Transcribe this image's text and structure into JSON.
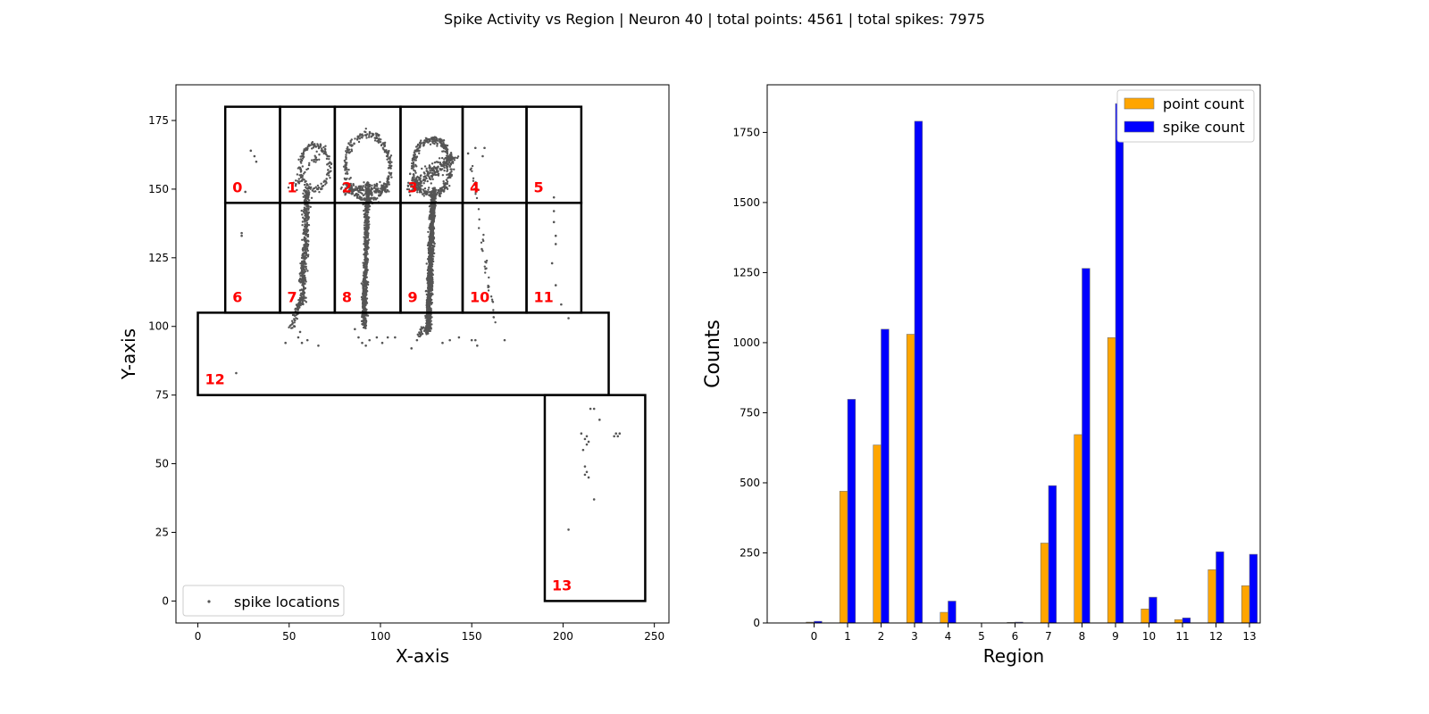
{
  "figure": {
    "suptitle": "Spike Activity vs Region | Neuron 40 | total points: 4561 | total spikes: 7975"
  },
  "chart_data": [
    {
      "type": "scatter",
      "title": "",
      "xlabel": "X-axis",
      "ylabel": "Y-axis",
      "xlim": [
        -12,
        258
      ],
      "ylim": [
        -8,
        188
      ],
      "xticks": [
        0,
        50,
        100,
        150,
        200,
        250
      ],
      "yticks": [
        0,
        25,
        50,
        75,
        100,
        125,
        150,
        175
      ],
      "legend": {
        "label": "spike locations",
        "position": "lower-left"
      },
      "point_color": "#555555",
      "region_label_color": "#ff0000",
      "regions": [
        {
          "id": "0",
          "x0": 15,
          "x1": 45,
          "y0": 145,
          "y1": 180
        },
        {
          "id": "1",
          "x0": 45,
          "x1": 75,
          "y0": 145,
          "y1": 180
        },
        {
          "id": "2",
          "x0": 75,
          "x1": 111,
          "y0": 145,
          "y1": 180
        },
        {
          "id": "3",
          "x0": 111,
          "x1": 145,
          "y0": 145,
          "y1": 180
        },
        {
          "id": "4",
          "x0": 145,
          "x1": 180,
          "y0": 145,
          "y1": 180
        },
        {
          "id": "5",
          "x0": 180,
          "x1": 210,
          "y0": 145,
          "y1": 180
        },
        {
          "id": "6",
          "x0": 15,
          "x1": 45,
          "y0": 105,
          "y1": 145
        },
        {
          "id": "7",
          "x0": 45,
          "x1": 75,
          "y0": 105,
          "y1": 145
        },
        {
          "id": "8",
          "x0": 75,
          "x1": 111,
          "y0": 105,
          "y1": 145
        },
        {
          "id": "9",
          "x0": 111,
          "x1": 145,
          "y0": 105,
          "y1": 145
        },
        {
          "id": "10",
          "x0": 145,
          "x1": 180,
          "y0": 105,
          "y1": 145
        },
        {
          "id": "11",
          "x0": 180,
          "x1": 210,
          "y0": 105,
          "y1": 145
        },
        {
          "id": "12",
          "x0": 0,
          "x1": 225,
          "y0": 75,
          "y1": 105
        },
        {
          "id": "13",
          "x0": 190,
          "x1": 245,
          "y0": 0,
          "y1": 75
        }
      ],
      "points": [
        [
          29,
          164
        ],
        [
          31,
          162
        ],
        [
          32,
          160
        ],
        [
          26,
          149
        ],
        [
          24,
          134
        ],
        [
          24,
          133
        ],
        [
          21,
          83
        ],
        [
          55,
          96
        ],
        [
          57,
          94
        ],
        [
          60,
          95
        ],
        [
          66,
          93
        ],
        [
          53,
          100
        ],
        [
          48,
          94
        ],
        [
          56,
          98
        ],
        [
          88,
          96
        ],
        [
          90,
          94
        ],
        [
          94,
          95
        ],
        [
          98,
          96
        ],
        [
          104,
          96
        ],
        [
          108,
          96
        ],
        [
          101,
          94
        ],
        [
          92,
          93
        ],
        [
          86,
          99
        ],
        [
          117,
          92
        ],
        [
          120,
          95
        ],
        [
          122,
          97
        ],
        [
          134,
          94
        ],
        [
          138,
          95
        ],
        [
          143,
          96
        ],
        [
          150,
          95
        ],
        [
          152,
          95
        ],
        [
          153,
          93
        ],
        [
          168,
          95
        ],
        [
          152,
          165
        ],
        [
          156,
          162
        ],
        [
          157,
          165
        ],
        [
          148,
          163
        ],
        [
          195,
          147
        ],
        [
          195,
          142
        ],
        [
          195,
          138
        ],
        [
          196,
          133
        ],
        [
          196,
          130
        ],
        [
          194,
          123
        ],
        [
          196,
          115
        ],
        [
          199,
          108
        ],
        [
          203,
          103
        ],
        [
          215,
          70
        ],
        [
          217,
          70
        ],
        [
          220,
          66
        ],
        [
          229,
          61
        ],
        [
          230,
          60
        ],
        [
          231,
          61
        ],
        [
          228,
          60
        ],
        [
          214,
          58
        ],
        [
          213,
          57
        ],
        [
          211,
          55
        ],
        [
          212,
          49
        ],
        [
          213,
          47
        ],
        [
          212,
          46
        ],
        [
          214,
          45
        ],
        [
          217,
          37
        ],
        [
          203,
          26
        ],
        [
          210,
          61
        ],
        [
          213,
          60
        ],
        [
          212,
          59
        ]
      ],
      "clusters": [
        {
          "kind": "line",
          "x0": 57,
          "y0": 108,
          "x1": 60,
          "y1": 150,
          "sx": 1.2,
          "sy": 0.7,
          "n": 420
        },
        {
          "kind": "line",
          "x0": 51,
          "y0": 98,
          "x1": 56,
          "y1": 110,
          "sx": 1.2,
          "sy": 1.0,
          "n": 45
        },
        {
          "kind": "arc",
          "cx": 64,
          "cy": 158,
          "r": 8,
          "sx": 0.8,
          "sy": 0.8,
          "n": 160
        },
        {
          "kind": "line",
          "x0": 52,
          "y0": 150,
          "x1": 70,
          "y1": 166,
          "sx": 2.0,
          "sy": 1.0,
          "n": 40
        },
        {
          "kind": "line",
          "x0": 91,
          "y0": 100,
          "x1": 93,
          "y1": 152,
          "sx": 0.9,
          "sy": 0.8,
          "n": 650
        },
        {
          "kind": "arc",
          "cx": 93,
          "cy": 158,
          "r": 12,
          "sx": 1.0,
          "sy": 1.0,
          "n": 260
        },
        {
          "kind": "line",
          "x0": 80,
          "y0": 150,
          "x1": 105,
          "y1": 150,
          "sx": 1.5,
          "sy": 1.5,
          "n": 150
        },
        {
          "kind": "line",
          "x0": 126,
          "y0": 98,
          "x1": 129,
          "y1": 150,
          "sx": 1.0,
          "sy": 0.8,
          "n": 1100
        },
        {
          "kind": "arc",
          "cx": 128,
          "cy": 158,
          "r": 10,
          "sx": 1.2,
          "sy": 1.0,
          "n": 350
        },
        {
          "kind": "line",
          "x0": 116,
          "y0": 150,
          "x1": 140,
          "y1": 162,
          "sx": 2.0,
          "sy": 1.8,
          "n": 220
        },
        {
          "kind": "line",
          "x0": 150,
          "y0": 158,
          "x1": 163,
          "y1": 100,
          "sx": 0.8,
          "sy": 0.8,
          "n": 45
        },
        {
          "kind": "line",
          "x0": 120,
          "y0": 96,
          "x1": 125,
          "y1": 100,
          "sx": 1.0,
          "sy": 1.0,
          "n": 25
        }
      ]
    },
    {
      "type": "bar",
      "title": "",
      "xlabel": "Region",
      "ylabel": "Counts",
      "ylim": [
        0,
        1920
      ],
      "yticks": [
        0,
        250,
        500,
        750,
        1000,
        1250,
        1500,
        1750
      ],
      "categories": [
        "0",
        "1",
        "2",
        "3",
        "4",
        "5",
        "6",
        "7",
        "8",
        "9",
        "10",
        "11",
        "12",
        "13"
      ],
      "legend_position": "upper-right",
      "series": [
        {
          "name": "point count",
          "color": "#ffa500",
          "values": [
            3,
            470,
            635,
            1030,
            38,
            0,
            2,
            285,
            672,
            1018,
            50,
            12,
            190,
            133
          ]
        },
        {
          "name": "spike count",
          "color": "#0000ff",
          "values": [
            6,
            798,
            1048,
            1790,
            78,
            0,
            3,
            490,
            1265,
            1853,
            92,
            18,
            254,
            245
          ]
        }
      ]
    }
  ]
}
